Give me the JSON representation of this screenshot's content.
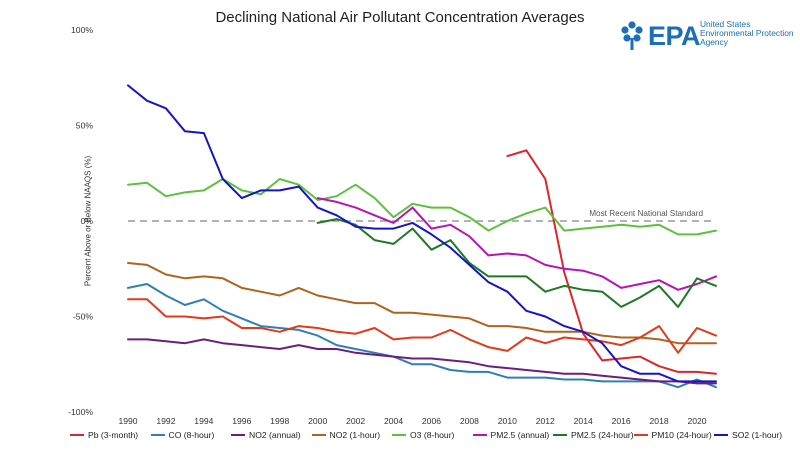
{
  "chart_data": {
    "type": "line",
    "title": "Declining National Air Pollutant Concentration Averages",
    "xlabel": "",
    "ylabel": "Percent Above or Below NAAQS (%)",
    "ylim": [
      -100,
      100
    ],
    "xlim": [
      1990,
      2021
    ],
    "x_ticks": [
      "1990",
      "1992",
      "1994",
      "1996",
      "1998",
      "2000",
      "2002",
      "2004",
      "2006",
      "2008",
      "2010",
      "2012",
      "2014",
      "2016",
      "2018",
      "2020"
    ],
    "y_ticks": [
      "100%",
      "50%",
      "0%",
      "-50%",
      "-100%"
    ],
    "y_tick_values": [
      100,
      50,
      0,
      -50,
      -100
    ],
    "grid": false,
    "legend_placement": "bottom",
    "reference_line": {
      "y": 0,
      "label": "Most Recent National Standard",
      "color": "#9a9a9a"
    },
    "series": [
      {
        "name": "Pb (3-month)",
        "color": "#e0242b",
        "x": [
          2010,
          2011,
          2012,
          2013,
          2014,
          2015,
          2016,
          2017,
          2018,
          2019,
          2020,
          2021
        ],
        "values": [
          34,
          37,
          22,
          -27,
          -59,
          -73,
          -72,
          -71,
          -76,
          -79,
          -79,
          -80
        ]
      },
      {
        "name": "CO (8-hour)",
        "color": "#2f7fb6",
        "x": [
          1990,
          1991,
          1992,
          1993,
          1994,
          1995,
          1996,
          1997,
          1998,
          1999,
          2000,
          2001,
          2002,
          2003,
          2004,
          2005,
          2006,
          2007,
          2008,
          2009,
          2010,
          2011,
          2012,
          2013,
          2014,
          2015,
          2016,
          2017,
          2018,
          2019,
          2020,
          2021
        ],
        "values": [
          -35,
          -33,
          -39,
          -44,
          -41,
          -47,
          -51,
          -55,
          -56,
          -57,
          -60,
          -65,
          -67,
          -69,
          -71,
          -75,
          -75,
          -78,
          -79,
          -79,
          -82,
          -82,
          -82,
          -83,
          -83,
          -84,
          -84,
          -84,
          -84,
          -87,
          -83,
          -87
        ]
      },
      {
        "name": "NO2 (annual)",
        "color": "#6a1f7a",
        "x": [
          1990,
          1991,
          1992,
          1993,
          1994,
          1995,
          1996,
          1997,
          1998,
          1999,
          2000,
          2001,
          2002,
          2003,
          2004,
          2005,
          2006,
          2007,
          2008,
          2009,
          2010,
          2011,
          2012,
          2013,
          2014,
          2015,
          2016,
          2017,
          2018,
          2019,
          2020,
          2021
        ],
        "values": [
          -62,
          -62,
          -63,
          -64,
          -62,
          -64,
          -65,
          -66,
          -67,
          -65,
          -67,
          -67,
          -69,
          -70,
          -71,
          -72,
          -72,
          -73,
          -74,
          -76,
          -77,
          -78,
          -79,
          -80,
          -80,
          -81,
          -82,
          -83,
          -84,
          -84,
          -85,
          -85
        ]
      },
      {
        "name": "NO2 (1-hour)",
        "color": "#b0631d",
        "x": [
          1990,
          1991,
          1992,
          1993,
          1994,
          1995,
          1996,
          1997,
          1998,
          1999,
          2000,
          2001,
          2002,
          2003,
          2004,
          2005,
          2006,
          2007,
          2008,
          2009,
          2010,
          2011,
          2012,
          2013,
          2014,
          2015,
          2016,
          2017,
          2018,
          2019,
          2020,
          2021
        ],
        "values": [
          -22,
          -23,
          -28,
          -30,
          -29,
          -30,
          -35,
          -37,
          -39,
          -35,
          -39,
          -41,
          -43,
          -43,
          -48,
          -48,
          -49,
          -50,
          -51,
          -55,
          -55,
          -56,
          -58,
          -58,
          -58,
          -60,
          -61,
          -61,
          -62,
          -64,
          -64,
          -64
        ]
      },
      {
        "name": "O3 (8-hour)",
        "color": "#5cc23d",
        "x": [
          1990,
          1991,
          1992,
          1993,
          1994,
          1995,
          1996,
          1997,
          1998,
          1999,
          2000,
          2001,
          2002,
          2003,
          2004,
          2005,
          2006,
          2007,
          2008,
          2009,
          2010,
          2011,
          2012,
          2013,
          2014,
          2015,
          2016,
          2017,
          2018,
          2019,
          2020,
          2021
        ],
        "values": [
          19,
          20,
          13,
          15,
          16,
          22,
          16,
          14,
          22,
          19,
          11,
          13,
          19,
          12,
          2,
          9,
          7,
          7,
          2,
          -5,
          0,
          4,
          7,
          -5,
          -4,
          -3,
          -2,
          -3,
          -2,
          -7,
          -7,
          -5
        ]
      },
      {
        "name": "PM2.5 (annual)",
        "color": "#b515b5",
        "x": [
          2000,
          2001,
          2002,
          2003,
          2004,
          2005,
          2006,
          2007,
          2008,
          2009,
          2010,
          2011,
          2012,
          2013,
          2014,
          2015,
          2016,
          2017,
          2018,
          2019,
          2020,
          2021
        ],
        "values": [
          12,
          10,
          7,
          3,
          -1,
          7,
          -4,
          -2,
          -8,
          -18,
          -17,
          -18,
          -23,
          -25,
          -26,
          -29,
          -35,
          -33,
          -31,
          -36,
          -33,
          -29
        ]
      },
      {
        "name": "PM2.5 (24-hour)",
        "color": "#1d7a22",
        "x": [
          2000,
          2001,
          2002,
          2003,
          2004,
          2005,
          2006,
          2007,
          2008,
          2009,
          2010,
          2011,
          2012,
          2013,
          2014,
          2015,
          2016,
          2017,
          2018,
          2019,
          2020,
          2021
        ],
        "values": [
          -1,
          1,
          -2,
          -10,
          -12,
          -4,
          -15,
          -10,
          -22,
          -29,
          -29,
          -29,
          -37,
          -34,
          -36,
          -37,
          -45,
          -40,
          -34,
          -45,
          -30,
          -34
        ]
      },
      {
        "name": "PM10 (24-hour)",
        "color": "#e23a1b",
        "x": [
          1990,
          1991,
          1992,
          1993,
          1994,
          1995,
          1996,
          1997,
          1998,
          1999,
          2000,
          2001,
          2002,
          2003,
          2004,
          2005,
          2006,
          2007,
          2008,
          2009,
          2010,
          2011,
          2012,
          2013,
          2014,
          2015,
          2016,
          2017,
          2018,
          2019,
          2020,
          2021
        ],
        "values": [
          -41,
          -41,
          -50,
          -50,
          -51,
          -50,
          -56,
          -56,
          -58,
          -55,
          -56,
          -58,
          -59,
          -56,
          -62,
          -61,
          -61,
          -57,
          -62,
          -66,
          -68,
          -61,
          -64,
          -61,
          -62,
          -63,
          -65,
          -61,
          -55,
          -69,
          -56,
          -60
        ]
      },
      {
        "name": "SO2 (1-hour)",
        "color": "#1515c8",
        "x": [
          1990,
          1991,
          1992,
          1993,
          1994,
          1995,
          1996,
          1997,
          1998,
          1999,
          2000,
          2001,
          2002,
          2003,
          2004,
          2005,
          2006,
          2007,
          2008,
          2009,
          2010,
          2011,
          2012,
          2013,
          2014,
          2015,
          2016,
          2017,
          2018,
          2019,
          2020,
          2021
        ],
        "values": [
          71,
          63,
          59,
          47,
          46,
          22,
          12,
          16,
          16,
          18,
          7,
          3,
          -3,
          -4,
          -4,
          -1,
          -7,
          -14,
          -23,
          -32,
          -37,
          -47,
          -50,
          -55,
          -58,
          -64,
          -76,
          -80,
          -80,
          -84,
          -84,
          -84
        ]
      }
    ]
  },
  "logo": {
    "brand": "EPA",
    "agency_lines": [
      "United States",
      "Environmental Protection",
      "Agency"
    ],
    "icon": "epa-flower-icon",
    "brand_color": "#1b6eb7"
  }
}
